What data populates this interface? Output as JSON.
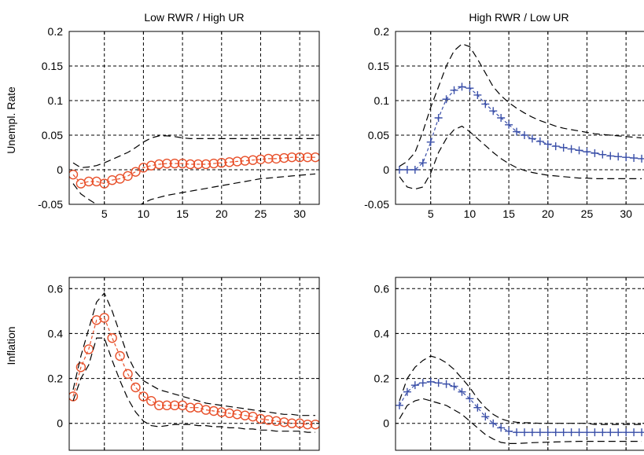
{
  "figure": {
    "row_labels": [
      "Unempl. Rate",
      "Inflation"
    ],
    "col_titles": [
      "Low RWR / High UR",
      "High RWR / Low UR"
    ]
  },
  "styles": {
    "series_colors": {
      "low_rwr": "#e8502a",
      "high_rwr": "#3a4fa8"
    },
    "band_color": "#000000",
    "grid_color": "#000000",
    "marker_names": {
      "low_rwr": "circle-marker",
      "high_rwr": "plus-marker"
    }
  },
  "chart_data": [
    {
      "type": "line",
      "row": 0,
      "col": 0,
      "title": "Low RWR / High UR",
      "xlabel": "",
      "ylabel": "Unempl. Rate",
      "xlim": [
        0.5,
        32.5
      ],
      "ylim": [
        -0.05,
        0.2
      ],
      "xticks": [
        5,
        10,
        15,
        20,
        25,
        30
      ],
      "yticks": [
        -0.05,
        0,
        0.05,
        0.1,
        0.15,
        0.2
      ],
      "ytick_labels": [
        "-0.05",
        "0",
        "0.05",
        "0.1",
        "0.15",
        "0.2"
      ],
      "grid": true,
      "series": [
        {
          "role": "point",
          "marker": "circle",
          "color": "low_rwr",
          "x": [
            1,
            2,
            3,
            4,
            5,
            6,
            7,
            8,
            9,
            10,
            11,
            12,
            13,
            14,
            15,
            16,
            17,
            18,
            19,
            20,
            21,
            22,
            23,
            24,
            25,
            26,
            27,
            28,
            29,
            30,
            31,
            32
          ],
          "values": [
            -0.007,
            -0.02,
            -0.017,
            -0.017,
            -0.02,
            -0.015,
            -0.013,
            -0.009,
            -0.003,
            0.003,
            0.006,
            0.008,
            0.009,
            0.009,
            0.009,
            0.008,
            0.008,
            0.008,
            0.009,
            0.01,
            0.011,
            0.012,
            0.013,
            0.014,
            0.015,
            0.016,
            0.016,
            0.017,
            0.018,
            0.018,
            0.018,
            0.018
          ]
        },
        {
          "role": "upper",
          "x": [
            1,
            2,
            3,
            4,
            5,
            6,
            7,
            8,
            9,
            10,
            11,
            12,
            13,
            14,
            15,
            16,
            17,
            18,
            19,
            20,
            21,
            22,
            23,
            24,
            25,
            26,
            27,
            28,
            29,
            30,
            31,
            32
          ],
          "values": [
            0.01,
            0.003,
            0.004,
            0.006,
            0.01,
            0.015,
            0.02,
            0.025,
            0.032,
            0.04,
            0.046,
            0.049,
            0.049,
            0.048,
            0.046,
            0.045,
            0.045,
            0.045,
            0.045,
            0.045,
            0.045,
            0.045,
            0.045,
            0.045,
            0.045,
            0.045,
            0.045,
            0.045,
            0.045,
            0.045,
            0.045,
            0.045
          ]
        },
        {
          "role": "lower",
          "x": [
            1,
            2,
            3,
            4,
            5,
            6,
            7,
            8,
            9,
            10,
            11,
            12,
            13,
            14,
            15,
            16,
            17,
            18,
            19,
            20,
            21,
            22,
            23,
            24,
            25,
            26,
            27,
            28,
            29,
            30,
            31,
            32
          ],
          "values": [
            -0.02,
            -0.035,
            -0.043,
            -0.05,
            -0.055,
            -0.06,
            -0.065,
            -0.062,
            -0.055,
            -0.048,
            -0.043,
            -0.04,
            -0.037,
            -0.035,
            -0.033,
            -0.031,
            -0.029,
            -0.027,
            -0.025,
            -0.023,
            -0.021,
            -0.019,
            -0.017,
            -0.015,
            -0.013,
            -0.012,
            -0.011,
            -0.01,
            -0.009,
            -0.008,
            -0.007,
            -0.006
          ]
        }
      ]
    },
    {
      "type": "line",
      "row": 0,
      "col": 1,
      "title": "High RWR / Low UR",
      "xlabel": "",
      "ylabel": "",
      "xlim": [
        0.5,
        32.5
      ],
      "ylim": [
        -0.05,
        0.2
      ],
      "xticks": [
        5,
        10,
        15,
        20,
        25,
        30
      ],
      "yticks": [
        -0.05,
        0,
        0.05,
        0.1,
        0.15,
        0.2
      ],
      "ytick_labels": [
        "-0.05",
        "0",
        "0.05",
        "0.1",
        "0.15",
        "0.2"
      ],
      "grid": true,
      "series": [
        {
          "role": "point",
          "marker": "plus",
          "color": "high_rwr",
          "x": [
            1,
            2,
            3,
            4,
            5,
            6,
            7,
            8,
            9,
            10,
            11,
            12,
            13,
            14,
            15,
            16,
            17,
            18,
            19,
            20,
            21,
            22,
            23,
            24,
            25,
            26,
            27,
            28,
            29,
            30,
            31,
            32
          ],
          "values": [
            0.0,
            0.0,
            0.0,
            0.01,
            0.04,
            0.075,
            0.102,
            0.115,
            0.12,
            0.118,
            0.108,
            0.095,
            0.085,
            0.075,
            0.065,
            0.055,
            0.05,
            0.045,
            0.041,
            0.037,
            0.034,
            0.032,
            0.03,
            0.028,
            0.026,
            0.024,
            0.022,
            0.02,
            0.019,
            0.018,
            0.017,
            0.016
          ]
        },
        {
          "role": "upper",
          "x": [
            1,
            2,
            3,
            4,
            5,
            6,
            7,
            8,
            9,
            10,
            11,
            12,
            13,
            14,
            15,
            16,
            17,
            18,
            19,
            20,
            21,
            22,
            23,
            24,
            25,
            26,
            27,
            28,
            29,
            30,
            31,
            32
          ],
          "values": [
            0.005,
            0.012,
            0.025,
            0.055,
            0.09,
            0.12,
            0.15,
            0.172,
            0.182,
            0.178,
            0.16,
            0.14,
            0.12,
            0.107,
            0.097,
            0.089,
            0.082,
            0.076,
            0.071,
            0.067,
            0.063,
            0.06,
            0.058,
            0.056,
            0.054,
            0.052,
            0.051,
            0.05,
            0.049,
            0.048,
            0.047,
            0.046
          ]
        },
        {
          "role": "lower",
          "x": [
            1,
            2,
            3,
            4,
            5,
            6,
            7,
            8,
            9,
            10,
            11,
            12,
            13,
            14,
            15,
            16,
            17,
            18,
            19,
            20,
            21,
            22,
            23,
            24,
            25,
            26,
            27,
            28,
            29,
            30,
            31,
            32
          ],
          "values": [
            -0.01,
            -0.025,
            -0.028,
            -0.025,
            -0.005,
            0.025,
            0.045,
            0.058,
            0.063,
            0.055,
            0.045,
            0.035,
            0.025,
            0.016,
            0.009,
            0.003,
            -0.001,
            -0.004,
            -0.006,
            -0.008,
            -0.009,
            -0.01,
            -0.011,
            -0.012,
            -0.012,
            -0.013,
            -0.013,
            -0.013,
            -0.013,
            -0.013,
            -0.013,
            -0.013
          ]
        }
      ]
    },
    {
      "type": "line",
      "row": 1,
      "col": 0,
      "title": "",
      "xlabel": "",
      "ylabel": "Inflation",
      "xlim": [
        0.5,
        32.5
      ],
      "ylim": [
        -0.12,
        0.65
      ],
      "xticks": [
        5,
        10,
        15,
        20,
        25,
        30
      ],
      "yticks": [
        0,
        0.2,
        0.4,
        0.6
      ],
      "ytick_labels": [
        "0",
        "0.2",
        "0.4",
        "0.6"
      ],
      "grid": true,
      "series": [
        {
          "role": "point",
          "marker": "circle",
          "color": "low_rwr",
          "x": [
            1,
            2,
            3,
            4,
            5,
            6,
            7,
            8,
            9,
            10,
            11,
            12,
            13,
            14,
            15,
            16,
            17,
            18,
            19,
            20,
            21,
            22,
            23,
            24,
            25,
            26,
            27,
            28,
            29,
            30,
            31,
            32
          ],
          "values": [
            0.12,
            0.25,
            0.33,
            0.46,
            0.47,
            0.38,
            0.3,
            0.22,
            0.16,
            0.12,
            0.1,
            0.08,
            0.08,
            0.08,
            0.08,
            0.07,
            0.07,
            0.06,
            0.055,
            0.05,
            0.045,
            0.04,
            0.035,
            0.03,
            0.02,
            0.015,
            0.01,
            0.005,
            0.0,
            0.0,
            -0.005,
            -0.005
          ]
        },
        {
          "role": "upper",
          "x": [
            1,
            2,
            3,
            4,
            5,
            6,
            7,
            8,
            9,
            10,
            11,
            12,
            13,
            14,
            15,
            16,
            17,
            18,
            19,
            20,
            21,
            22,
            23,
            24,
            25,
            26,
            27,
            28,
            29,
            30,
            31,
            32
          ],
          "values": [
            0.15,
            0.3,
            0.42,
            0.54,
            0.58,
            0.5,
            0.4,
            0.3,
            0.23,
            0.19,
            0.17,
            0.15,
            0.14,
            0.13,
            0.12,
            0.11,
            0.1,
            0.09,
            0.085,
            0.08,
            0.075,
            0.07,
            0.065,
            0.06,
            0.055,
            0.05,
            0.045,
            0.04,
            0.04,
            0.035,
            0.035,
            0.035
          ]
        },
        {
          "role": "lower",
          "x": [
            1,
            2,
            3,
            4,
            5,
            6,
            7,
            8,
            9,
            10,
            11,
            12,
            13,
            14,
            15,
            16,
            17,
            18,
            19,
            20,
            21,
            22,
            23,
            24,
            25,
            26,
            27,
            28,
            29,
            30,
            31,
            32
          ],
          "values": [
            0.1,
            0.2,
            0.26,
            0.38,
            0.38,
            0.28,
            0.19,
            0.11,
            0.05,
            0.01,
            -0.01,
            -0.015,
            -0.01,
            -0.005,
            -0.005,
            -0.005,
            -0.01,
            -0.01,
            -0.015,
            -0.015,
            -0.02,
            -0.02,
            -0.025,
            -0.025,
            -0.03,
            -0.03,
            -0.035,
            -0.035,
            -0.035,
            -0.035,
            -0.04,
            -0.04
          ]
        }
      ]
    },
    {
      "type": "line",
      "row": 1,
      "col": 1,
      "title": "",
      "xlabel": "",
      "ylabel": "",
      "xlim": [
        0.5,
        32.5
      ],
      "ylim": [
        -0.12,
        0.65
      ],
      "xticks": [
        5,
        10,
        15,
        20,
        25,
        30
      ],
      "yticks": [
        0,
        0.2,
        0.4,
        0.6
      ],
      "ytick_labels": [
        "0",
        "0.2",
        "0.4",
        "0.6"
      ],
      "grid": true,
      "series": [
        {
          "role": "point",
          "marker": "plus",
          "color": "high_rwr",
          "x": [
            1,
            2,
            3,
            4,
            5,
            6,
            7,
            8,
            9,
            10,
            11,
            12,
            13,
            14,
            15,
            16,
            17,
            18,
            19,
            20,
            21,
            22,
            23,
            24,
            25,
            26,
            27,
            28,
            29,
            30,
            31,
            32
          ],
          "values": [
            0.08,
            0.14,
            0.17,
            0.18,
            0.185,
            0.18,
            0.175,
            0.165,
            0.14,
            0.11,
            0.07,
            0.03,
            0.0,
            -0.02,
            -0.035,
            -0.04,
            -0.04,
            -0.04,
            -0.04,
            -0.04,
            -0.04,
            -0.04,
            -0.04,
            -0.04,
            -0.04,
            -0.04,
            -0.04,
            -0.04,
            -0.04,
            -0.04,
            -0.04,
            -0.04
          ]
        },
        {
          "role": "upper",
          "x": [
            1,
            2,
            3,
            4,
            5,
            6,
            7,
            8,
            9,
            10,
            11,
            12,
            13,
            14,
            15,
            16,
            17,
            18,
            19,
            20,
            21,
            22,
            23,
            24,
            25,
            26,
            27,
            28,
            29,
            30,
            31,
            32
          ],
          "values": [
            0.1,
            0.2,
            0.25,
            0.28,
            0.3,
            0.29,
            0.27,
            0.24,
            0.2,
            0.16,
            0.11,
            0.07,
            0.04,
            0.02,
            0.01,
            0.005,
            0.003,
            0.002,
            0.0,
            0.0,
            0.0,
            0.0,
            0.0,
            0.0,
            0.0,
            -0.005,
            -0.005,
            -0.005,
            -0.005,
            -0.005,
            -0.005,
            -0.005
          ]
        },
        {
          "role": "lower",
          "x": [
            1,
            2,
            3,
            4,
            5,
            6,
            7,
            8,
            9,
            10,
            11,
            12,
            13,
            14,
            15,
            16,
            17,
            18,
            19,
            20,
            21,
            22,
            23,
            24,
            25,
            26,
            27,
            28,
            29,
            30,
            31,
            32
          ],
          "values": [
            0.02,
            0.08,
            0.1,
            0.11,
            0.1,
            0.09,
            0.08,
            0.06,
            0.04,
            0.01,
            -0.02,
            -0.05,
            -0.07,
            -0.085,
            -0.09,
            -0.09,
            -0.088,
            -0.086,
            -0.085,
            -0.084,
            -0.083,
            -0.082,
            -0.081,
            -0.08,
            -0.08,
            -0.08,
            -0.08,
            -0.08,
            -0.08,
            -0.08,
            -0.08,
            -0.08
          ]
        }
      ]
    }
  ]
}
